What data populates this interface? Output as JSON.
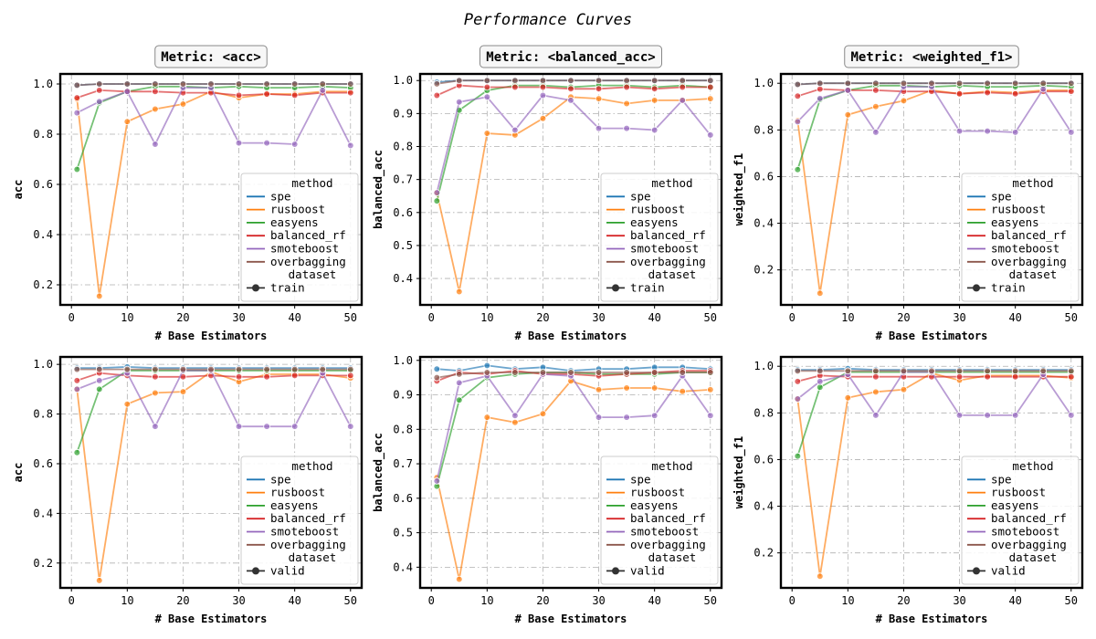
{
  "figure": {
    "title": "Performance Curves"
  },
  "chart_data": {
    "type": "line",
    "grid": true,
    "legend_placement": "lower right",
    "xlabel": "# Base Estimators",
    "x": [
      1,
      5,
      10,
      15,
      20,
      25,
      30,
      35,
      40,
      45,
      50
    ],
    "xticks": [
      0,
      10,
      20,
      30,
      40,
      50
    ],
    "xlim": [
      -2,
      52
    ],
    "legend": {
      "method_header": "method",
      "dataset_header": "dataset"
    },
    "series_colors": {
      "spe": "#1f77b4",
      "rusboost": "#ff7f0e",
      "easyens": "#2ca02c",
      "balanced_rf": "#d62728",
      "smoteboost": "#9467bd",
      "overbagging": "#8c564b",
      "dataset_marker": "#333333"
    },
    "panels": [
      {
        "title": "Metric: <acc>",
        "ylabel": "acc",
        "dataset": "train",
        "ylim": [
          0.12,
          1.04
        ],
        "yticks": [
          0.2,
          0.4,
          0.6,
          0.8,
          1.0
        ],
        "series": [
          {
            "name": "spe",
            "values": [
              0.995,
              1.0,
              1.0,
              1.0,
              1.0,
              1.0,
              1.0,
              1.0,
              1.0,
              1.0,
              1.0
            ]
          },
          {
            "name": "rusboost",
            "values": [
              0.94,
              0.155,
              0.85,
              0.9,
              0.92,
              0.97,
              0.945,
              0.96,
              0.96,
              0.97,
              0.97
            ]
          },
          {
            "name": "easyens",
            "values": [
              0.66,
              0.925,
              0.97,
              0.99,
              0.99,
              0.985,
              0.99,
              0.985,
              0.985,
              0.99,
              0.985
            ]
          },
          {
            "name": "balanced_rf",
            "values": [
              0.945,
              0.975,
              0.97,
              0.97,
              0.965,
              0.965,
              0.955,
              0.96,
              0.955,
              0.965,
              0.965
            ]
          },
          {
            "name": "smoteboost",
            "values": [
              0.885,
              0.93,
              0.97,
              0.76,
              0.985,
              0.985,
              0.765,
              0.765,
              0.76,
              0.975,
              0.755
            ]
          },
          {
            "name": "overbagging",
            "values": [
              0.995,
              1.0,
              1.0,
              1.0,
              1.0,
              1.0,
              1.0,
              1.0,
              1.0,
              1.0,
              1.0
            ]
          }
        ]
      },
      {
        "title": "Metric: <balanced_acc>",
        "ylabel": "balanced_acc",
        "dataset": "train",
        "ylim": [
          0.32,
          1.02
        ],
        "yticks": [
          0.4,
          0.5,
          0.6,
          0.7,
          0.8,
          0.9,
          1.0
        ],
        "series": [
          {
            "name": "spe",
            "values": [
              0.995,
              1.0,
              1.0,
              1.0,
              1.0,
              1.0,
              1.0,
              1.0,
              1.0,
              1.0,
              1.0
            ]
          },
          {
            "name": "rusboost",
            "values": [
              0.66,
              0.36,
              0.84,
              0.835,
              0.885,
              0.95,
              0.945,
              0.93,
              0.94,
              0.94,
              0.945
            ]
          },
          {
            "name": "easyens",
            "values": [
              0.635,
              0.91,
              0.97,
              0.985,
              0.985,
              0.98,
              0.985,
              0.985,
              0.98,
              0.985,
              0.98
            ]
          },
          {
            "name": "balanced_rf",
            "values": [
              0.955,
              0.985,
              0.98,
              0.98,
              0.98,
              0.975,
              0.975,
              0.98,
              0.975,
              0.98,
              0.98
            ]
          },
          {
            "name": "smoteboost",
            "values": [
              0.66,
              0.935,
              0.95,
              0.85,
              0.955,
              0.94,
              0.855,
              0.855,
              0.85,
              0.94,
              0.835
            ]
          },
          {
            "name": "overbagging",
            "values": [
              0.99,
              1.0,
              1.0,
              1.0,
              1.0,
              1.0,
              1.0,
              1.0,
              1.0,
              1.0,
              1.0
            ]
          }
        ]
      },
      {
        "title": "Metric: <weighted_f1>",
        "ylabel": "weighted_f1",
        "dataset": "train",
        "ylim": [
          0.05,
          1.04
        ],
        "yticks": [
          0.2,
          0.4,
          0.6,
          0.8,
          1.0
        ],
        "series": [
          {
            "name": "spe",
            "values": [
              0.995,
              1.0,
              1.0,
              1.0,
              1.0,
              1.0,
              1.0,
              1.0,
              1.0,
              1.0,
              1.0
            ]
          },
          {
            "name": "rusboost",
            "values": [
              0.84,
              0.1,
              0.865,
              0.9,
              0.925,
              0.97,
              0.955,
              0.965,
              0.96,
              0.97,
              0.97
            ]
          },
          {
            "name": "easyens",
            "values": [
              0.63,
              0.93,
              0.97,
              0.99,
              0.99,
              0.985,
              0.99,
              0.985,
              0.985,
              0.99,
              0.985
            ]
          },
          {
            "name": "balanced_rf",
            "values": [
              0.945,
              0.975,
              0.97,
              0.97,
              0.965,
              0.965,
              0.955,
              0.96,
              0.955,
              0.965,
              0.965
            ]
          },
          {
            "name": "smoteboost",
            "values": [
              0.835,
              0.935,
              0.97,
              0.79,
              0.985,
              0.985,
              0.795,
              0.795,
              0.79,
              0.975,
              0.79
            ]
          },
          {
            "name": "overbagging",
            "values": [
              0.995,
              1.0,
              1.0,
              1.0,
              1.0,
              1.0,
              1.0,
              1.0,
              1.0,
              1.0,
              1.0
            ]
          }
        ]
      },
      {
        "title": "",
        "ylabel": "acc",
        "dataset": "valid",
        "ylim": [
          0.1,
          1.03
        ],
        "yticks": [
          0.2,
          0.4,
          0.6,
          0.8,
          1.0
        ],
        "series": [
          {
            "name": "spe",
            "values": [
              0.985,
              0.985,
              0.99,
              0.985,
              0.985,
              0.985,
              0.985,
              0.985,
              0.985,
              0.985,
              0.985
            ]
          },
          {
            "name": "rusboost",
            "values": [
              0.9,
              0.13,
              0.84,
              0.885,
              0.89,
              0.97,
              0.93,
              0.96,
              0.96,
              0.96,
              0.945
            ]
          },
          {
            "name": "easyens",
            "values": [
              0.645,
              0.9,
              0.975,
              0.975,
              0.975,
              0.975,
              0.975,
              0.975,
              0.975,
              0.975,
              0.975
            ]
          },
          {
            "name": "balanced_rf",
            "values": [
              0.935,
              0.965,
              0.955,
              0.95,
              0.95,
              0.955,
              0.95,
              0.95,
              0.955,
              0.955,
              0.955
            ]
          },
          {
            "name": "smoteboost",
            "values": [
              0.9,
              0.935,
              0.965,
              0.75,
              0.975,
              0.975,
              0.75,
              0.75,
              0.75,
              0.965,
              0.75
            ]
          },
          {
            "name": "overbagging",
            "values": [
              0.98,
              0.98,
              0.98,
              0.98,
              0.98,
              0.98,
              0.98,
              0.98,
              0.98,
              0.98,
              0.98
            ]
          }
        ]
      },
      {
        "title": "",
        "ylabel": "balanced_acc",
        "dataset": "valid",
        "ylim": [
          0.34,
          1.01
        ],
        "yticks": [
          0.4,
          0.5,
          0.6,
          0.7,
          0.8,
          0.9,
          1.0
        ],
        "series": [
          {
            "name": "spe",
            "values": [
              0.975,
              0.97,
              0.985,
              0.975,
              0.98,
              0.97,
              0.975,
              0.975,
              0.98,
              0.98,
              0.975
            ]
          },
          {
            "name": "rusboost",
            "values": [
              0.66,
              0.365,
              0.835,
              0.82,
              0.845,
              0.94,
              0.915,
              0.92,
              0.92,
              0.91,
              0.915
            ]
          },
          {
            "name": "easyens",
            "values": [
              0.635,
              0.885,
              0.95,
              0.96,
              0.965,
              0.965,
              0.96,
              0.96,
              0.96,
              0.965,
              0.965
            ]
          },
          {
            "name": "balanced_rf",
            "values": [
              0.94,
              0.965,
              0.96,
              0.97,
              0.96,
              0.96,
              0.955,
              0.96,
              0.965,
              0.97,
              0.97
            ]
          },
          {
            "name": "smoteboost",
            "values": [
              0.65,
              0.935,
              0.955,
              0.84,
              0.96,
              0.955,
              0.835,
              0.835,
              0.84,
              0.955,
              0.84
            ]
          },
          {
            "name": "overbagging",
            "values": [
              0.95,
              0.96,
              0.965,
              0.965,
              0.965,
              0.965,
              0.965,
              0.965,
              0.965,
              0.965,
              0.965
            ]
          }
        ]
      },
      {
        "title": "",
        "ylabel": "weighted_f1",
        "dataset": "valid",
        "ylim": [
          0.05,
          1.04
        ],
        "yticks": [
          0.2,
          0.4,
          0.6,
          0.8,
          1.0
        ],
        "series": [
          {
            "name": "spe",
            "values": [
              0.985,
              0.985,
              0.99,
              0.985,
              0.985,
              0.985,
              0.985,
              0.985,
              0.985,
              0.985,
              0.985
            ]
          },
          {
            "name": "rusboost",
            "values": [
              0.86,
              0.1,
              0.865,
              0.89,
              0.9,
              0.97,
              0.94,
              0.96,
              0.96,
              0.96,
              0.95
            ]
          },
          {
            "name": "easyens",
            "values": [
              0.615,
              0.91,
              0.975,
              0.975,
              0.975,
              0.975,
              0.975,
              0.975,
              0.975,
              0.975,
              0.975
            ]
          },
          {
            "name": "balanced_rf",
            "values": [
              0.935,
              0.96,
              0.955,
              0.955,
              0.955,
              0.955,
              0.955,
              0.955,
              0.955,
              0.955,
              0.955
            ]
          },
          {
            "name": "smoteboost",
            "values": [
              0.86,
              0.935,
              0.965,
              0.79,
              0.975,
              0.975,
              0.79,
              0.79,
              0.79,
              0.965,
              0.79
            ]
          },
          {
            "name": "overbagging",
            "values": [
              0.98,
              0.98,
              0.98,
              0.98,
              0.98,
              0.98,
              0.98,
              0.98,
              0.98,
              0.98,
              0.98
            ]
          }
        ]
      }
    ]
  }
}
